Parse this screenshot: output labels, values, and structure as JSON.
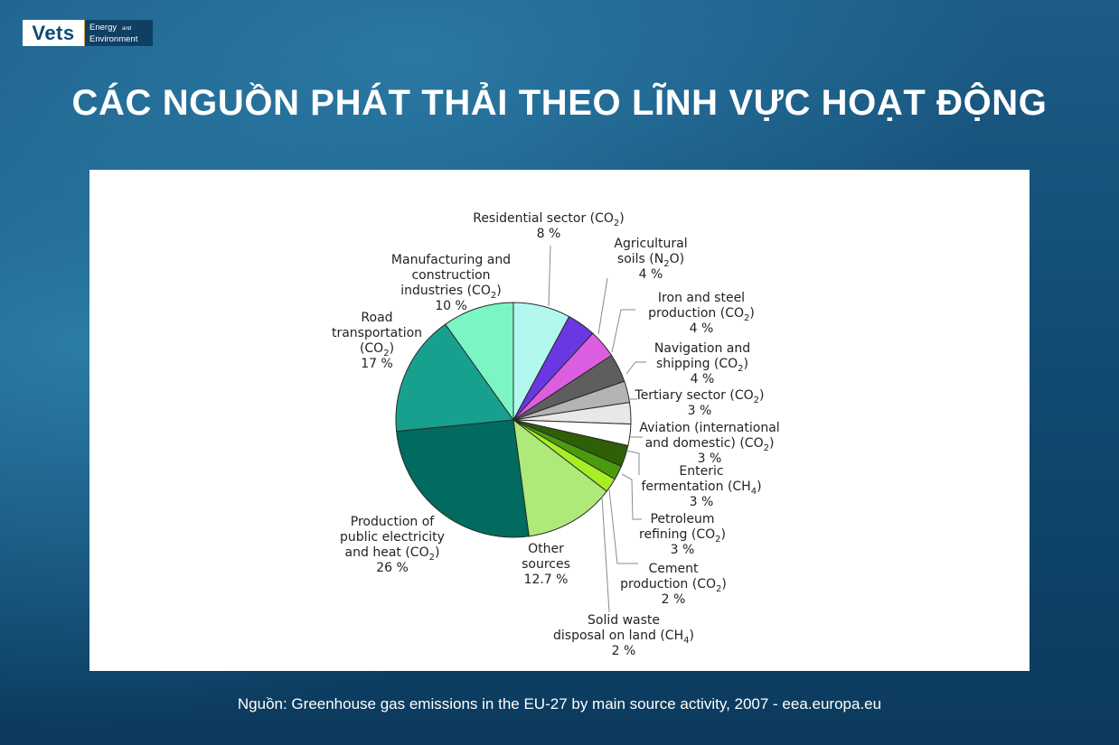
{
  "logo": {
    "brand": "Vets",
    "line1": "Energy",
    "line1_small": "and",
    "line2": "Environment"
  },
  "page_title": "CÁC NGUỒN PHÁT THẢI THEO LĨNH VỰC HOẠT ĐỘNG",
  "source": "Nguồn: Greenhouse gas emissions in the EU-27 by main source activity, 2007 - eea.europa.eu",
  "chart_data": {
    "type": "pie",
    "title": "",
    "slices": [
      {
        "label": "Residential sector (CO2)",
        "value": 8,
        "value_label": "8 %",
        "color": "#b3f8ef"
      },
      {
        "label": "Agricultural soils (N2O)",
        "value": 4,
        "value_label": "4 %",
        "color": "#6a38e3"
      },
      {
        "label": "Iron and steel production (CO2)",
        "value": 4,
        "value_label": "4 %",
        "color": "#dc5ee0"
      },
      {
        "label": "Navigation and shipping (CO2)",
        "value": 4,
        "value_label": "4 %",
        "color": "#5e5e5e"
      },
      {
        "label": "Tertiary sector (CO2)",
        "value": 3,
        "value_label": "3 %",
        "color": "#b4b4b4"
      },
      {
        "label": "Aviation (international and domestic) (CO2)",
        "value": 3,
        "value_label": "3 %",
        "color": "#e8e8e8"
      },
      {
        "label": "Enteric fermentation (CH4)",
        "value": 3,
        "value_label": "3 %",
        "color": "#ffffff"
      },
      {
        "label": "Petroleum refining (CO2)",
        "value": 3,
        "value_label": "3 %",
        "color": "#2f5f06"
      },
      {
        "label": "Cement production (CO2)",
        "value": 2,
        "value_label": "2 %",
        "color": "#4a9c0d"
      },
      {
        "label": "Solid waste disposal on land (CH4)",
        "value": 2,
        "value_label": "2 %",
        "color": "#a7ef22"
      },
      {
        "label": "Other sources",
        "value": 12.7,
        "value_label": "12.7 %",
        "color": "#aeea7a"
      },
      {
        "label": "Production of public electricity and heat (CO2)",
        "value": 26,
        "value_label": "26 %",
        "color": "#006b5e"
      },
      {
        "label": "Road transportation (CO2)",
        "value": 17,
        "value_label": "17 %",
        "color": "#18a08f"
      },
      {
        "label": "Manufacturing and construction industries (CO2)",
        "value": 10,
        "value_label": "10 %",
        "color": "#7af5c3"
      }
    ],
    "labels": {
      "residential": {
        "l1": "Residential sector (CO",
        "s1": "2",
        "t1": ")",
        "pct": "8 %"
      },
      "agricultural": {
        "l1": "Agricultural",
        "l2": "soils (N",
        "s2": "2",
        "t2": "O)",
        "pct": "4 %"
      },
      "iron": {
        "l1": "Iron and steel",
        "l2": "production (CO",
        "s2": "2",
        "t2": ")",
        "pct": "4 %"
      },
      "navigation": {
        "l1": "Navigation and",
        "l2": "shipping (CO",
        "s2": "2",
        "t2": ")",
        "pct": "4 %"
      },
      "tertiary": {
        "l1": "Tertiary sector (CO",
        "s1": "2",
        "t1": ")",
        "pct": "3 %"
      },
      "aviation": {
        "l1": "Aviation (international",
        "l2": "and domestic) (CO",
        "s2": "2",
        "t2": ")",
        "pct": "3 %"
      },
      "enteric": {
        "l1": "Enteric",
        "l2": "fermentation (CH",
        "s2": "4",
        "t2": ")",
        "pct": "3 %"
      },
      "petroleum": {
        "l1": "Petroleum",
        "l2": "refining (CO",
        "s2": "2",
        "t2": ")",
        "pct": "3 %"
      },
      "cement": {
        "l1": "Cement",
        "l2": "production (CO",
        "s2": "2",
        "t2": ")",
        "pct": "2 %"
      },
      "solid": {
        "l1": "Solid waste",
        "l2": "disposal on land (CH",
        "s2": "4",
        "t2": ")",
        "pct": "2 %"
      },
      "other": {
        "l1": "Other",
        "l2": "sources",
        "pct": "12.7 %"
      },
      "production": {
        "l1": "Production of",
        "l2": "public electricity",
        "l3": "and heat (CO",
        "s3": "2",
        "t3": ")",
        "pct": "26 %"
      },
      "road": {
        "l1": "Road",
        "l2": "transportation",
        "l3": "(CO",
        "s3": "2",
        "t3": ")",
        "pct": "17 %"
      },
      "manufacturing": {
        "l1": "Manufacturing and",
        "l2": "construction",
        "l3": "industries (CO",
        "s3": "2",
        "t3": ")",
        "pct": "10 %"
      }
    }
  }
}
